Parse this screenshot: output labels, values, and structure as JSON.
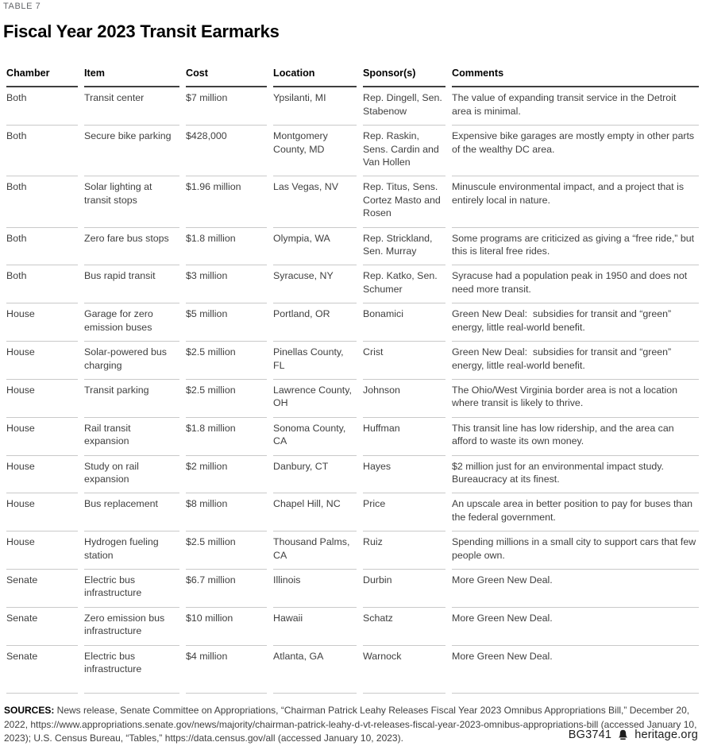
{
  "header": {
    "table_label": "TABLE 7",
    "title": "Fiscal Year 2023 Transit Earmarks"
  },
  "table": {
    "columns": [
      "Chamber",
      "Item",
      "Cost",
      "Location",
      "Sponsor(s)",
      "Comments"
    ],
    "rows": [
      {
        "chamber": "Both",
        "item": "Transit center",
        "cost": "$7 million",
        "location": "Ypsilanti, MI",
        "sponsors": "Rep. Dingell, Sen. Stabenow",
        "comments": "The value of expanding transit service in the Detroit area is minimal."
      },
      {
        "chamber": "Both",
        "item": "Secure bike parking",
        "cost": "$428,000",
        "location": "Montgomery County, MD",
        "sponsors": "Rep. Raskin, Sens. Cardin and Van Hollen",
        "comments": "Expensive bike garages are mostly empty in other parts of the wealthy DC area."
      },
      {
        "chamber": "Both",
        "item": "Solar lighting at transit stops",
        "cost": "$1.96 million",
        "location": "Las Vegas, NV",
        "sponsors": "Rep. Titus, Sens. Cortez Masto and Rosen",
        "comments": "Minuscule environmental impact, and a project that is entirely local in nature."
      },
      {
        "chamber": "Both",
        "item": "Zero fare bus stops",
        "cost": "$1.8 million",
        "location": "Olympia, WA",
        "sponsors": "Rep. Strickland, Sen. Murray",
        "comments": "Some programs are criticized as giving a “free ride,” but this is literal free rides."
      },
      {
        "chamber": "Both",
        "item": "Bus rapid transit",
        "cost": "$3 million",
        "location": "Syracuse, NY",
        "sponsors": "Rep. Katko, Sen. Schumer",
        "comments": "Syracuse had a population peak in 1950 and does not need more transit."
      },
      {
        "chamber": "House",
        "item": "Garage for zero emission buses",
        "cost": "$5 million",
        "location": "Portland, OR",
        "sponsors": "Bonamici",
        "comments": "Green New Deal:  subsidies for transit and “green” energy, little real-world benefit."
      },
      {
        "chamber": "House",
        "item": "Solar-powered bus charging",
        "cost": "$2.5 million",
        "location": "Pinellas County, FL",
        "sponsors": "Crist",
        "comments": "Green New Deal:  subsidies for transit and “green” energy, little real-world benefit."
      },
      {
        "chamber": "House",
        "item": "Transit parking",
        "cost": "$2.5 million",
        "location": "Lawrence County, OH",
        "sponsors": "Johnson",
        "comments": "The Ohio/West Virginia border area is not a location where transit is likely to thrive."
      },
      {
        "chamber": "House",
        "item": "Rail transit expansion",
        "cost": "$1.8 million",
        "location": "Sonoma County, CA",
        "sponsors": "Huffman",
        "comments": "This transit line has low ridership, and the area can afford to waste its own money."
      },
      {
        "chamber": "House",
        "item": "Study on rail expansion",
        "cost": "$2 million",
        "location": "Danbury, CT",
        "sponsors": "Hayes",
        "comments": "$2 million just for an environmental impact study. Bureaucracy at its finest."
      },
      {
        "chamber": "House",
        "item": "Bus replacement",
        "cost": "$8 million",
        "location": "Chapel Hill, NC",
        "sponsors": "Price",
        "comments": "An upscale area in better position to pay for buses than the federal government."
      },
      {
        "chamber": "House",
        "item": "Hydrogen fueling station",
        "cost": "$2.5 million",
        "location": "Thousand Palms, CA",
        "sponsors": "Ruiz",
        "comments": "Spending millions in a small city to support cars that few people own."
      },
      {
        "chamber": "Senate",
        "item": "Electric bus infrastructure",
        "cost": "$6.7 million",
        "location": "Illinois",
        "sponsors": "Durbin",
        "comments": "More Green New Deal."
      },
      {
        "chamber": "Senate",
        "item": "Zero emission bus infrastructure",
        "cost": "$10 million",
        "location": "Hawaii",
        "sponsors": "Schatz",
        "comments": "More Green New Deal."
      },
      {
        "chamber": "Senate",
        "item": "Electric bus infrastructure",
        "cost": "$4 million",
        "location": "Atlanta, GA",
        "sponsors": "Warnock",
        "comments": "More Green New Deal."
      }
    ]
  },
  "sources": {
    "label": "SOURCES:",
    "text": " News release, Senate Committee on Appropriations, “Chairman Patrick Leahy Releases Fiscal Year 2023 Omnibus Appropriations Bill,” December 20, 2022, https://www.appropriations.senate.gov/news/majority/chairman-patrick-leahy-d-vt-releases-fiscal-year-2023-omnibus-appropriations-bill (accessed January 10, 2023); U.S. Census Bureau, “Tables,” https://data.census.gov/all (accessed January 10, 2023)."
  },
  "footer": {
    "doc_id": "BG3741",
    "site": "heritage.org",
    "bell_icon": "heritage-liberty-bell"
  },
  "colors": {
    "body_text": "#3f3f3f",
    "heading_text": "#000000",
    "label_gray": "#63666a",
    "header_rule": "#3f3f3f",
    "row_rule": "#c9c9c9",
    "background": "#ffffff"
  }
}
